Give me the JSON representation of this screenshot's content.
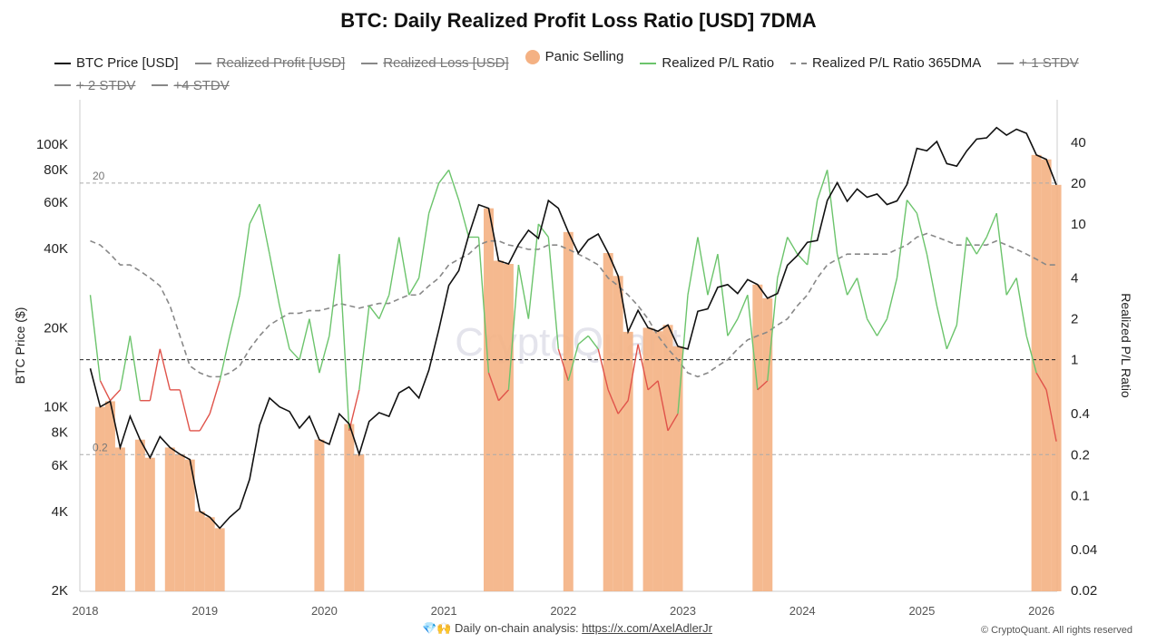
{
  "chart_data": {
    "type": "line",
    "title": "BTC: Daily Realized Profit Loss Ratio [USD] 7DMA",
    "ylabel_left": "BTC Price ($)",
    "ylabel_right": "Realized P/L Ratio",
    "y_left_scale": "log",
    "y_right_scale": "log",
    "ylim_left": [
      2000,
      150000
    ],
    "ylim_right": [
      0.02,
      80
    ],
    "xlim": [
      "2018-01",
      "2026-02"
    ],
    "x_ticks": [
      "2018",
      "2019",
      "2020",
      "2021",
      "2022",
      "2023",
      "2024",
      "2025",
      "2026"
    ],
    "y_left_ticks": [
      {
        "v": 2000,
        "l": "2K"
      },
      {
        "v": 4000,
        "l": "4K"
      },
      {
        "v": 6000,
        "l": "6K"
      },
      {
        "v": 8000,
        "l": "8K"
      },
      {
        "v": 10000,
        "l": "10K"
      },
      {
        "v": 20000,
        "l": "20K"
      },
      {
        "v": 40000,
        "l": "40K"
      },
      {
        "v": 60000,
        "l": "60K"
      },
      {
        "v": 80000,
        "l": "80K"
      },
      {
        "v": 100000,
        "l": "100K"
      }
    ],
    "y_right_ticks": [
      {
        "v": 0.02,
        "l": "0.02"
      },
      {
        "v": 0.04,
        "l": "0.04"
      },
      {
        "v": 0.1,
        "l": "0.1"
      },
      {
        "v": 0.2,
        "l": "0.2"
      },
      {
        "v": 0.4,
        "l": "0.4"
      },
      {
        "v": 1,
        "l": "1"
      },
      {
        "v": 2,
        "l": "2"
      },
      {
        "v": 4,
        "l": "4"
      },
      {
        "v": 10,
        "l": "10"
      },
      {
        "v": 20,
        "l": "20"
      },
      {
        "v": 40,
        "l": "40"
      }
    ],
    "reference_lines": [
      {
        "value": 20,
        "label": "20",
        "color": "#aaaaaa"
      },
      {
        "value": 1,
        "label": "",
        "color": "#222222"
      },
      {
        "value": 0.2,
        "label": "0.2",
        "color": "#aaaaaa"
      }
    ],
    "legend": [
      {
        "name": "BTC Price [USD]",
        "color": "#111111",
        "style": "solid",
        "hidden": false
      },
      {
        "name": "Realized Profit [USD]",
        "color": "#888888",
        "style": "solid",
        "hidden": true
      },
      {
        "name": "Realized Loss [USD]",
        "color": "#888888",
        "style": "solid",
        "hidden": true
      },
      {
        "name": "Panic Selling",
        "color": "#f4b183",
        "style": "dot",
        "hidden": false
      },
      {
        "name": "Realized P/L Ratio",
        "color": "#6cc46c",
        "style": "solid",
        "hidden": false
      },
      {
        "name": "Realized P/L Ratio 365DMA",
        "color": "#888888",
        "style": "dash",
        "hidden": false
      },
      {
        "name": "+ 1 STDV",
        "color": "#888888",
        "style": "solid",
        "hidden": true
      },
      {
        "name": "+ 2 STDV",
        "color": "#888888",
        "style": "solid",
        "hidden": true
      },
      {
        "name": "+4 STDV",
        "color": "#888888",
        "style": "solid",
        "hidden": true
      }
    ],
    "colors": {
      "price": "#111111",
      "ratio_profit": "#6cc46c",
      "ratio_loss": "#e0534a",
      "panic": "#f4b183",
      "dma": "#888888"
    },
    "series": [
      {
        "name": "BTC Price [USD]",
        "axis": "left",
        "values": [
          14000,
          10000,
          10500,
          7000,
          9200,
          7500,
          6400,
          7700,
          7000,
          6600,
          6300,
          4000,
          3800,
          3450,
          3800,
          4100,
          5300,
          8500,
          10800,
          10000,
          9600,
          8300,
          9200,
          7500,
          7200,
          9400,
          8600,
          6600,
          8800,
          9500,
          9200,
          11300,
          11900,
          10800,
          13800,
          19700,
          29000,
          33000,
          45000,
          58800,
          57000,
          36000,
          35000,
          41500,
          47000,
          43800,
          61000,
          57000,
          46300,
          38500,
          43200,
          45500,
          38500,
          31500,
          19300,
          23300,
          20000,
          19400,
          20500,
          17000,
          16600,
          23100,
          23600,
          28500,
          29200,
          27000,
          30500,
          29200,
          25900,
          27000,
          34600,
          37700,
          42300,
          43000,
          61000,
          71300,
          60600,
          67500,
          62800,
          64600,
          58900,
          60800,
          70200,
          96400,
          94400,
          102400,
          84300,
          82500,
          94200,
          104600,
          105700,
          115700,
          108200,
          114000,
          110000,
          91000,
          87500,
          70000
        ]
      },
      {
        "name": "Realized P/L Ratio",
        "axis": "right",
        "values": [
          3,
          0.7,
          0.5,
          0.6,
          1.5,
          0.5,
          0.5,
          1.2,
          0.6,
          0.6,
          0.3,
          0.3,
          0.4,
          0.7,
          1.5,
          3,
          10,
          14,
          6,
          2.5,
          1.2,
          1,
          2,
          0.8,
          1.5,
          6,
          0.3,
          0.6,
          2.5,
          2,
          3,
          8,
          3,
          4,
          12,
          20,
          25,
          15,
          8,
          8,
          0.8,
          0.5,
          0.6,
          5,
          2,
          10,
          8,
          1.2,
          0.7,
          1.3,
          1.5,
          1.2,
          0.6,
          0.4,
          0.5,
          1.3,
          0.6,
          0.7,
          0.3,
          0.4,
          3,
          8,
          3,
          6,
          1.5,
          2,
          3,
          0.6,
          0.7,
          4,
          8,
          6,
          5,
          15,
          25,
          6,
          3,
          4,
          2,
          1.5,
          2,
          4,
          15,
          12,
          6,
          2.5,
          1.2,
          1.8,
          8,
          6,
          8,
          12,
          3,
          4,
          1.5,
          0.8,
          0.6,
          0.25
        ]
      },
      {
        "name": "Realized P/L Ratio 365DMA",
        "axis": "right",
        "values": [
          7.5,
          7,
          6,
          5,
          5,
          4.5,
          4,
          3.5,
          2.5,
          1.5,
          0.9,
          0.8,
          0.75,
          0.75,
          0.8,
          0.9,
          1.2,
          1.5,
          1.8,
          2,
          2.2,
          2.2,
          2.3,
          2.3,
          2.4,
          2.6,
          2.5,
          2.4,
          2.5,
          2.6,
          2.6,
          2.8,
          3,
          3,
          3.5,
          4,
          5,
          5.5,
          6,
          7,
          7.5,
          7.5,
          7,
          6.8,
          6.5,
          6.5,
          7,
          7,
          6.5,
          6,
          5.5,
          5,
          4,
          3.5,
          3,
          2.5,
          2,
          1.5,
          1.2,
          1,
          0.8,
          0.75,
          0.8,
          0.9,
          1,
          1.2,
          1.4,
          1.5,
          1.6,
          1.8,
          2,
          2.5,
          3,
          4,
          5,
          5.5,
          6,
          6,
          6,
          6,
          6,
          6.5,
          7,
          8,
          8.5,
          8,
          7.5,
          7,
          7,
          7,
          7,
          7.5,
          7,
          6.5,
          6,
          5.5,
          5,
          5
        ]
      }
    ]
  },
  "watermark": "CryptoQuant",
  "footer": {
    "emoji": "💎🙌",
    "text": "Daily on-chain analysis: ",
    "link": "https://x.com/AxelAdlerJr",
    "copyright": "© CryptoQuant. All rights reserved"
  }
}
